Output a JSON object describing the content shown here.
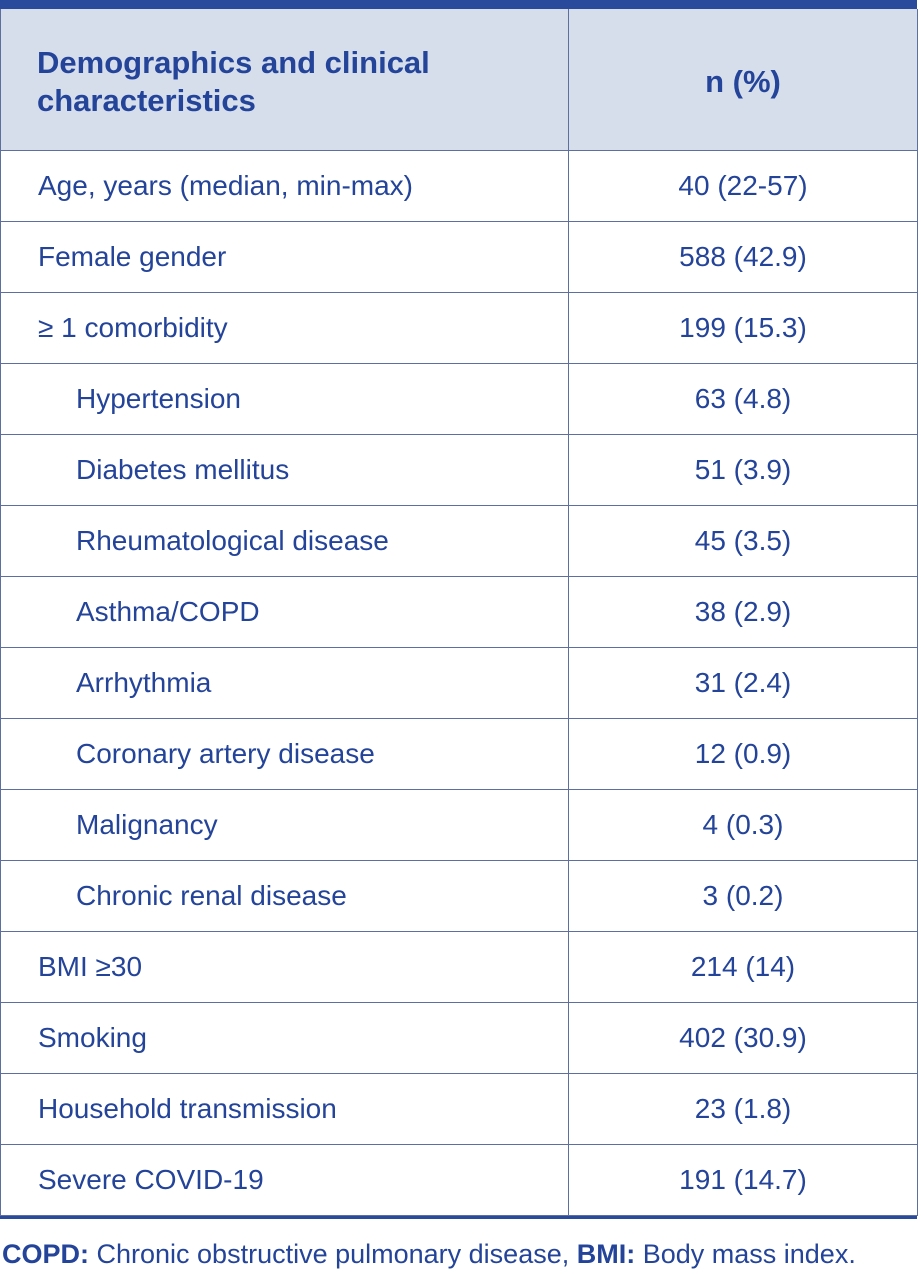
{
  "table": {
    "header": {
      "col1": "Demographics and clinical characteristics",
      "col2": "n (%)"
    },
    "rows": [
      {
        "label": "Age, years (median, min-max)",
        "value": "40 (22-57)",
        "indent": false
      },
      {
        "label": "Female gender",
        "value": "588 (42.9)",
        "indent": false
      },
      {
        "label": "≥ 1 comorbidity",
        "value": "199 (15.3)",
        "indent": false
      },
      {
        "label": "Hypertension",
        "value": "63 (4.8)",
        "indent": true
      },
      {
        "label": "Diabetes mellitus",
        "value": "51 (3.9)",
        "indent": true
      },
      {
        "label": "Rheumatological disease",
        "value": "45 (3.5)",
        "indent": true
      },
      {
        "label": "Asthma/COPD",
        "value": "38 (2.9)",
        "indent": true
      },
      {
        "label": "Arrhythmia",
        "value": "31 (2.4)",
        "indent": true
      },
      {
        "label": "Coronary artery disease",
        "value": "12 (0.9)",
        "indent": true
      },
      {
        "label": "Malignancy",
        "value": "4 (0.3)",
        "indent": true
      },
      {
        "label": "Chronic renal disease",
        "value": "3 (0.2)",
        "indent": true
      },
      {
        "label": "BMI ≥30",
        "value": "214 (14)",
        "indent": false
      },
      {
        "label": "Smoking",
        "value": "402 (30.9)",
        "indent": false
      },
      {
        "label": "Household transmission",
        "value": "23 (1.8)",
        "indent": false
      },
      {
        "label": "Severe COVID-19",
        "value": "191 (14.7)",
        "indent": false
      }
    ]
  },
  "footnote": {
    "abbr1": "COPD:",
    "def1": " Chronic obstructive pulmonary disease, ",
    "abbr2": "BMI:",
    "def2": " Body mass index."
  }
}
